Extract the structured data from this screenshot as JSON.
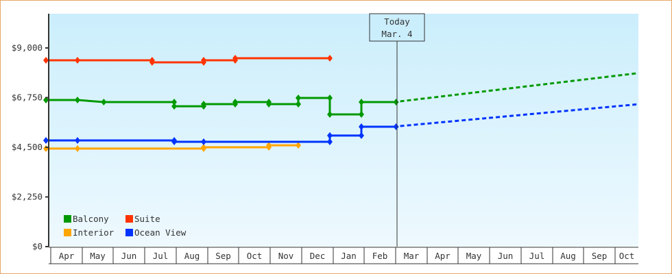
{
  "chart_data": {
    "type": "line",
    "title": "",
    "xlabel": "",
    "ylabel": "",
    "ylim": [
      0,
      10500
    ],
    "y_ticks": [
      "$0",
      "$2,250",
      "$4,500",
      "$6,750",
      "$9,000"
    ],
    "y_tick_values": [
      0,
      2250,
      4500,
      6750,
      9000
    ],
    "x_ticks": [
      "Apr",
      "May",
      "Jun",
      "Jul",
      "Aug",
      "Sep",
      "Oct",
      "Nov",
      "Dec",
      "Jan",
      "Feb",
      "Mar",
      "Apr",
      "May",
      "Jun",
      "Jul",
      "Aug",
      "Sep",
      "Oct"
    ],
    "grid": false,
    "legend_position": "bottom-left inside",
    "today_marker": {
      "line1": "Today",
      "line2": "Mar. 4"
    },
    "series": [
      {
        "name": "Balcony",
        "color": "#009900",
        "step": true,
        "points": [
          [
            "Apr 1",
            6640
          ],
          [
            "May 1",
            6640
          ],
          [
            "May 26",
            6550
          ],
          [
            "Aug 3",
            6550
          ],
          [
            "Aug 3b",
            6360
          ],
          [
            "Sep 1",
            6360
          ],
          [
            "Sep 1b",
            6455
          ],
          [
            "Oct 1",
            6455
          ],
          [
            "Oct 1b",
            6550
          ],
          [
            "Nov 3",
            6550
          ],
          [
            "Nov 3b",
            6455
          ],
          [
            "Dec 1",
            6455
          ],
          [
            "Dec 1b",
            6735
          ],
          [
            "Jan 1",
            6735
          ],
          [
            "Jan 1b",
            5990
          ],
          [
            "Feb 1",
            5990
          ],
          [
            "Feb 1b",
            6550
          ],
          [
            "Mar 4",
            6550
          ]
        ],
        "forecast": [
          [
            "Mar 4",
            6550
          ],
          [
            "Oct 31",
            7860
          ]
        ]
      },
      {
        "name": "Suite",
        "color": "#ff3300",
        "step": true,
        "points": [
          [
            "Apr 1",
            8440
          ],
          [
            "May 1",
            8440
          ],
          [
            "Jul 12",
            8440
          ],
          [
            "Jul 12b",
            8350
          ],
          [
            "Sep 1",
            8350
          ],
          [
            "Sep 1b",
            8440
          ],
          [
            "Oct 1",
            8440
          ],
          [
            "Oct 1b",
            8535
          ],
          [
            "Jan 1",
            8535
          ]
        ]
      },
      {
        "name": "Interior",
        "color": "#ffa500",
        "step": true,
        "points": [
          [
            "Apr 1",
            4440
          ],
          [
            "May 1",
            4440
          ],
          [
            "Sep 1",
            4440
          ],
          [
            "Sep 1b",
            4500
          ],
          [
            "Nov 3",
            4500
          ],
          [
            "Nov 3b",
            4590
          ],
          [
            "Dec 1",
            4590
          ]
        ]
      },
      {
        "name": "Ocean View",
        "color": "#0033ff",
        "step": true,
        "points": [
          [
            "Apr 1",
            4810
          ],
          [
            "May 1",
            4810
          ],
          [
            "Aug 3",
            4810
          ],
          [
            "Aug 3b",
            4750
          ],
          [
            "Sep 1",
            4750
          ],
          [
            "Jan 1",
            4750
          ],
          [
            "Jan 1b",
            5030
          ],
          [
            "Feb 1",
            5030
          ],
          [
            "Feb 1b",
            5430
          ],
          [
            "Mar 4",
            5430
          ]
        ],
        "forecast": [
          [
            "Mar 4",
            5430
          ],
          [
            "Oct 31",
            6450
          ]
        ]
      }
    ]
  }
}
